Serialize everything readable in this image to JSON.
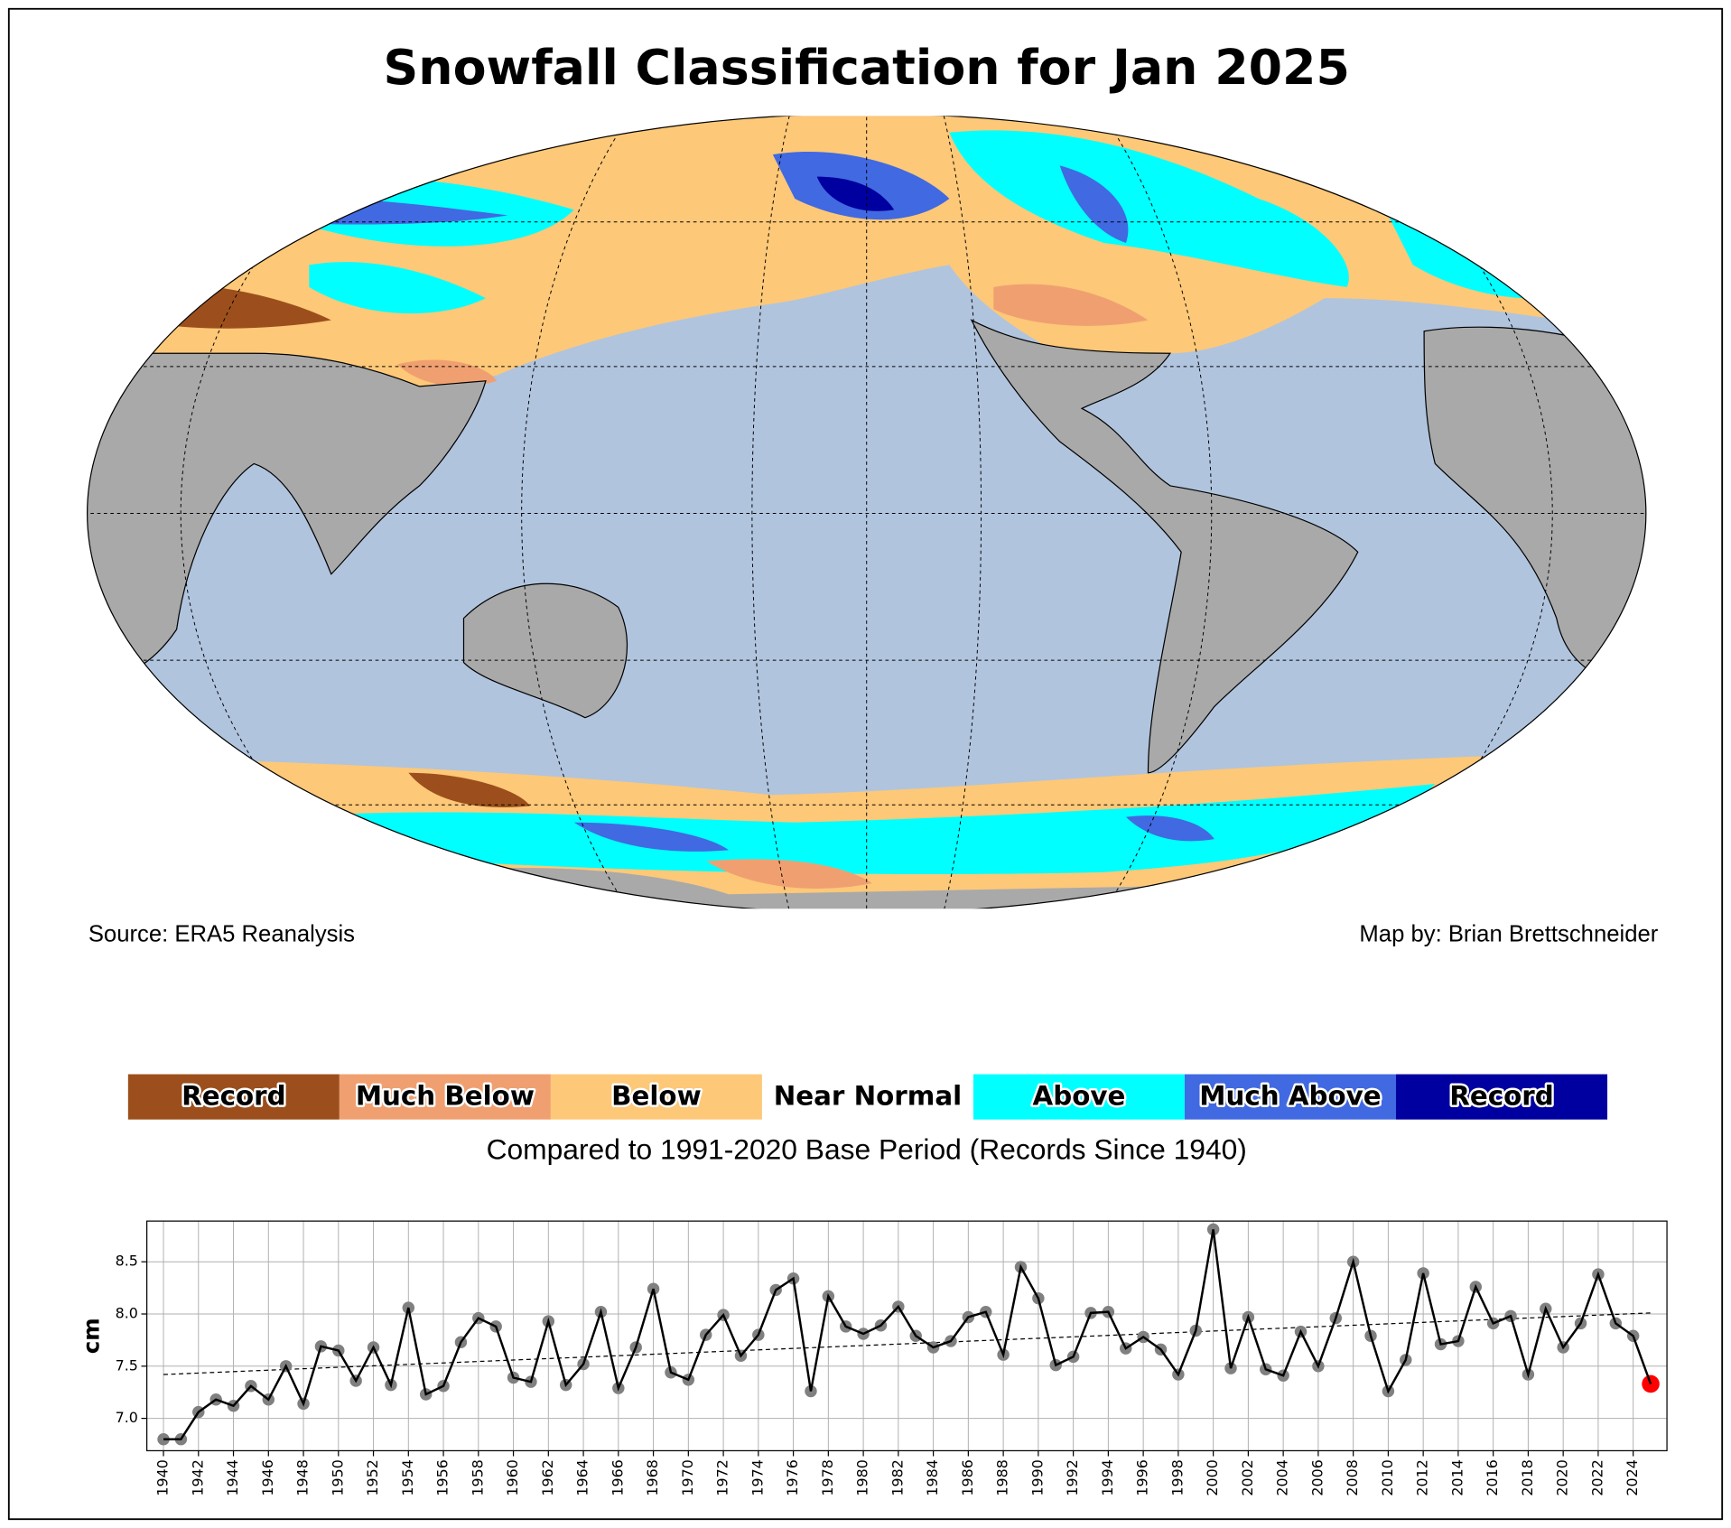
{
  "header": {
    "title": "Snowfall Classification for Jan 2025",
    "source": "Source: ERA5 Reanalysis",
    "credit": "Map by: Brian Brettschneider"
  },
  "legend": {
    "items": [
      {
        "label": "Record",
        "color": "#9c4f1c"
      },
      {
        "label": "Much Below",
        "color": "#f0a070"
      },
      {
        "label": "Below",
        "color": "#fdc878"
      },
      {
        "label": "Near Normal",
        "color": "#ffffff"
      },
      {
        "label": "Above",
        "color": "#00ffff"
      },
      {
        "label": "Much Above",
        "color": "#4169e1"
      },
      {
        "label": "Record",
        "color": "#0000a0"
      }
    ],
    "caption": "Compared to 1991-2020 Base Period   (Records Since 1940)"
  },
  "chart_data": {
    "type": "line",
    "y_label": "cm",
    "x": [
      1940,
      1941,
      1942,
      1943,
      1944,
      1945,
      1946,
      1947,
      1948,
      1949,
      1950,
      1951,
      1952,
      1953,
      1954,
      1955,
      1956,
      1957,
      1958,
      1959,
      1960,
      1961,
      1962,
      1963,
      1964,
      1965,
      1966,
      1967,
      1968,
      1969,
      1970,
      1971,
      1972,
      1973,
      1974,
      1975,
      1976,
      1977,
      1978,
      1979,
      1980,
      1981,
      1982,
      1983,
      1984,
      1985,
      1986,
      1987,
      1988,
      1989,
      1990,
      1991,
      1992,
      1993,
      1994,
      1995,
      1996,
      1997,
      1998,
      1999,
      2000,
      2001,
      2002,
      2003,
      2004,
      2005,
      2006,
      2007,
      2008,
      2009,
      2010,
      2011,
      2012,
      2013,
      2014,
      2015,
      2016,
      2017,
      2018,
      2019,
      2020,
      2021,
      2022,
      2023,
      2024,
      2025
    ],
    "series": [
      {
        "color": "#000000",
        "marker_color": "#808080",
        "highlight_color": "#ff0000",
        "values": [
          6.8,
          6.8,
          7.06,
          7.18,
          7.12,
          7.31,
          7.18,
          7.5,
          7.14,
          7.69,
          7.65,
          7.36,
          7.68,
          7.32,
          8.06,
          7.23,
          7.31,
          7.73,
          7.96,
          7.88,
          7.39,
          7.35,
          7.93,
          7.32,
          7.52,
          8.02,
          7.29,
          7.68,
          8.24,
          7.44,
          7.37,
          7.8,
          7.99,
          7.6,
          7.8,
          8.23,
          8.34,
          7.26,
          8.17,
          7.88,
          7.81,
          7.89,
          8.07,
          7.79,
          7.68,
          7.74,
          7.97,
          8.02,
          7.61,
          8.45,
          8.15,
          7.51,
          7.59,
          8.01,
          8.02,
          7.67,
          7.78,
          7.66,
          7.42,
          7.84,
          8.81,
          7.48,
          7.97,
          7.47,
          7.41,
          7.83,
          7.5,
          7.96,
          8.5,
          7.79,
          7.26,
          7.56,
          8.39,
          7.71,
          7.74,
          8.26,
          7.91,
          7.98,
          7.42,
          8.05,
          7.68,
          7.91,
          8.38,
          7.91,
          7.79,
          7.33
        ]
      }
    ],
    "trend": {
      "x": [
        1940,
        2025
      ],
      "values": [
        7.42,
        8.01
      ],
      "color": "#000000"
    },
    "xlim": [
      1939.05,
      2025.93
    ],
    "ylim": [
      6.69,
      8.89
    ],
    "xticks": [
      1940,
      1942,
      1944,
      1946,
      1948,
      1950,
      1952,
      1954,
      1956,
      1958,
      1960,
      1962,
      1964,
      1966,
      1968,
      1970,
      1972,
      1974,
      1976,
      1978,
      1980,
      1982,
      1984,
      1986,
      1988,
      1990,
      1992,
      1994,
      1996,
      1998,
      2000,
      2002,
      2004,
      2006,
      2008,
      2010,
      2012,
      2014,
      2016,
      2018,
      2020,
      2022,
      2024
    ],
    "yticks": [
      {
        "value": 7,
        "label": "7.0"
      },
      7.5,
      {
        "value": 8,
        "label": "8.0"
      },
      8.5
    ],
    "grid": true
  }
}
